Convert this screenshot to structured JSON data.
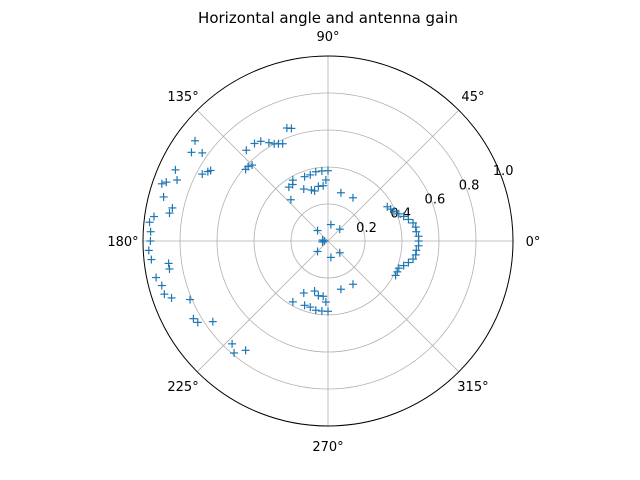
{
  "chart_data": {
    "type": "scatter",
    "projection": "polar",
    "title": "Horizontal angle and antenna gain",
    "marker": "+",
    "color": "#1f77b4",
    "theta_unit": "degrees",
    "rlim": [
      0,
      1.0
    ],
    "grid": true,
    "theta_ticks": [
      "0°",
      "45°",
      "90°",
      "135°",
      "180°",
      "225°",
      "270°",
      "315°"
    ],
    "r_ticks": [
      "0.2",
      "0.4",
      "0.6",
      "0.8",
      "1.0"
    ],
    "series": [
      {
        "points": [
          [
            0,
            0.49
          ],
          [
            3,
            0.49
          ],
          [
            6,
            0.48
          ],
          [
            9,
            0.48
          ],
          [
            12,
            0.47
          ],
          [
            15,
            0.45
          ],
          [
            18,
            0.43
          ],
          [
            21,
            0.41
          ],
          [
            24,
            0.39
          ],
          [
            27,
            0.38
          ],
          [
            30,
            0.37
          ],
          [
            -3,
            0.49
          ],
          [
            -6,
            0.48
          ],
          [
            -9,
            0.48
          ],
          [
            -12,
            0.47
          ],
          [
            -15,
            0.45
          ],
          [
            -18,
            0.43
          ],
          [
            -21,
            0.41
          ],
          [
            -24,
            0.41
          ],
          [
            -27,
            0.41
          ],
          [
            45,
            0.09
          ],
          [
            60,
            0.27
          ],
          [
            75,
            0.27
          ],
          [
            80,
            0.09
          ],
          [
            90,
            0.38
          ],
          [
            92,
            0.33
          ],
          [
            95,
            0.38
          ],
          [
            95,
            0.3
          ],
          [
            100,
            0.38
          ],
          [
            100,
            0.3
          ],
          [
            105,
            0.37
          ],
          [
            105,
            0.28
          ],
          [
            108,
            0.29
          ],
          [
            110,
            0.37
          ],
          [
            115,
            0.31
          ],
          [
            120,
            0.38
          ],
          [
            122,
            0.36
          ],
          [
            126,
            0.36
          ],
          [
            132,
            0.3
          ],
          [
            135,
            0.08
          ],
          [
            -45,
            0.09
          ],
          [
            -60,
            0.27
          ],
          [
            -75,
            0.27
          ],
          [
            -80,
            0.09
          ],
          [
            -90,
            0.38
          ],
          [
            -92,
            0.33
          ],
          [
            -95,
            0.38
          ],
          [
            -95,
            0.3
          ],
          [
            -100,
            0.38
          ],
          [
            -100,
            0.3
          ],
          [
            -105,
            0.37
          ],
          [
            -105,
            0.28
          ],
          [
            -110,
            0.37
          ],
          [
            -115,
            0.31
          ],
          [
            -120,
            0.38
          ],
          [
            -135,
            0.08
          ],
          [
            180,
            0.02
          ],
          [
            170,
            0.03
          ],
          [
            190,
            0.03
          ],
          [
            108,
            0.64
          ],
          [
            110,
            0.65
          ],
          [
            115,
            0.58
          ],
          [
            117,
            0.59
          ],
          [
            119,
            0.6
          ],
          [
            121,
            0.62
          ],
          [
            124,
            0.65
          ],
          [
            127,
            0.66
          ],
          [
            132,
            0.66
          ],
          [
            135,
            0.58
          ],
          [
            137,
            0.59
          ],
          [
            139,
            0.59
          ],
          [
            143,
            0.9
          ],
          [
            145,
            0.83
          ],
          [
            147,
            0.88
          ],
          [
            149,
            0.74
          ],
          [
            150,
            0.75
          ],
          [
            152,
            0.77
          ],
          [
            155,
            0.91
          ],
          [
            158,
            0.88
          ],
          [
            160,
            0.93
          ],
          [
            161,
            0.95
          ],
          [
            165,
            0.92
          ],
          [
            168,
            0.86
          ],
          [
            170,
            0.87
          ],
          [
            172,
            0.95
          ],
          [
            174,
            0.97
          ],
          [
            177,
            0.96
          ],
          [
            180,
            0.96
          ],
          [
            183,
            0.97
          ],
          [
            186,
            0.96
          ],
          [
            188,
            0.87
          ],
          [
            190,
            0.87
          ],
          [
            192,
            0.95
          ],
          [
            195,
            0.93
          ],
          [
            198,
            0.93
          ],
          [
            200,
            0.9
          ],
          [
            203,
            0.81
          ],
          [
            210,
            0.84
          ],
          [
            212,
            0.83
          ],
          [
            215,
            0.76
          ],
          [
            227,
            0.76
          ],
          [
            230,
            0.79
          ],
          [
            233,
            0.74
          ]
        ]
      }
    ]
  }
}
